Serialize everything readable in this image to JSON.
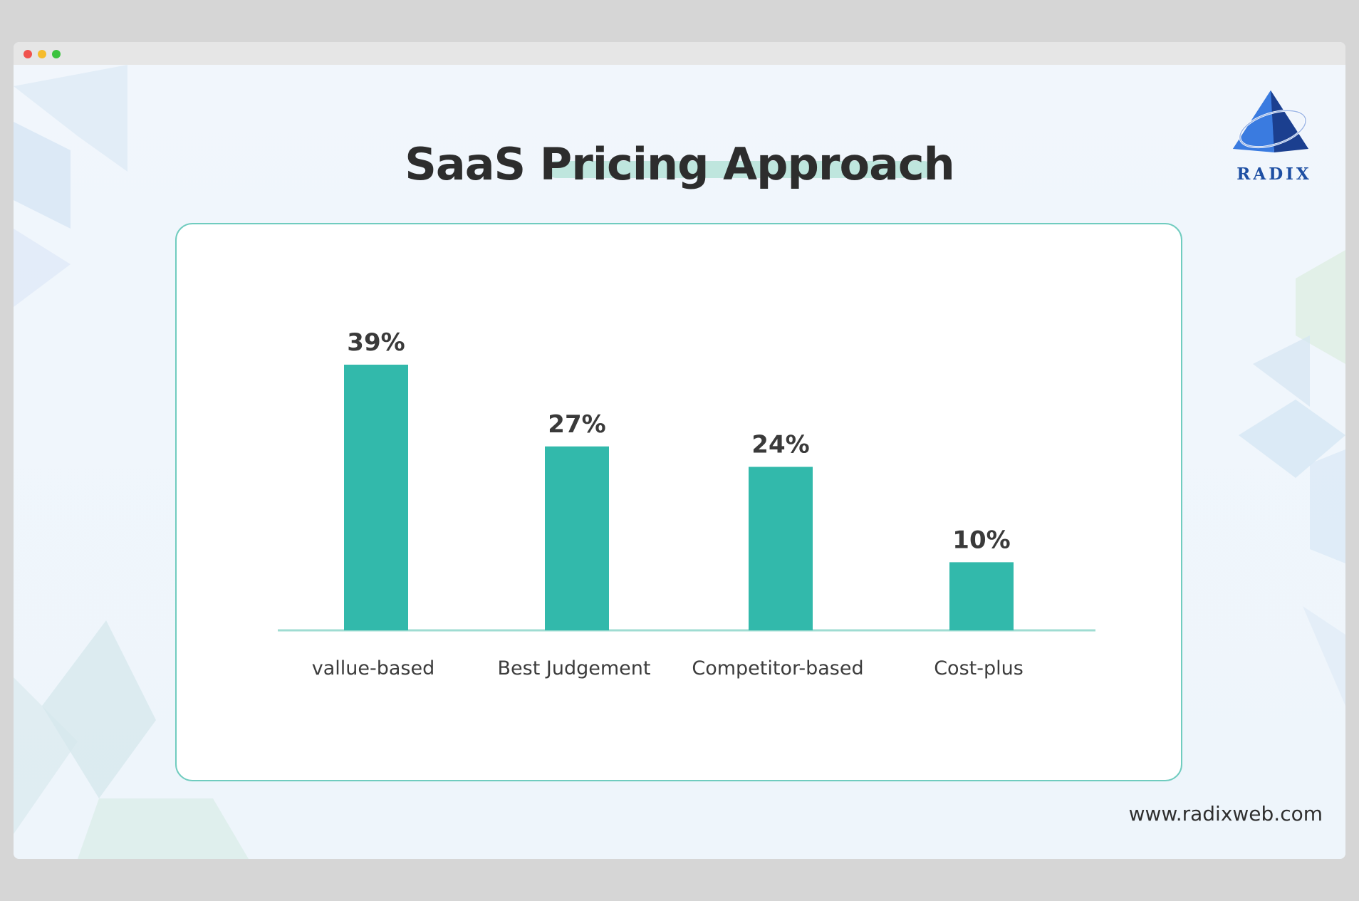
{
  "window": {
    "controls": [
      "close",
      "minimize",
      "maximize"
    ]
  },
  "slide": {
    "title": "SaaS Pricing Approach",
    "logo_text": "RADIX",
    "url": "www.radixweb.com"
  },
  "colors": {
    "bar": "#32b9ab",
    "baseline": "#9fdcd2",
    "card_border": "#70ccbf",
    "title_highlight": "#bfe6de",
    "logo_blue": "#1e4fa3"
  },
  "chart_data": {
    "type": "bar",
    "title": "SaaS Pricing Approach",
    "categories": [
      "vallue-based",
      "Best Judgement",
      "Competitor-based",
      "Cost-plus"
    ],
    "values": [
      39,
      27,
      24,
      10
    ],
    "value_labels": [
      "39%",
      "27%",
      "24%",
      "10%"
    ],
    "unit": "%",
    "xlabel": "",
    "ylabel": "",
    "ylim": [
      0,
      39
    ],
    "grid": false,
    "legend": "none"
  }
}
